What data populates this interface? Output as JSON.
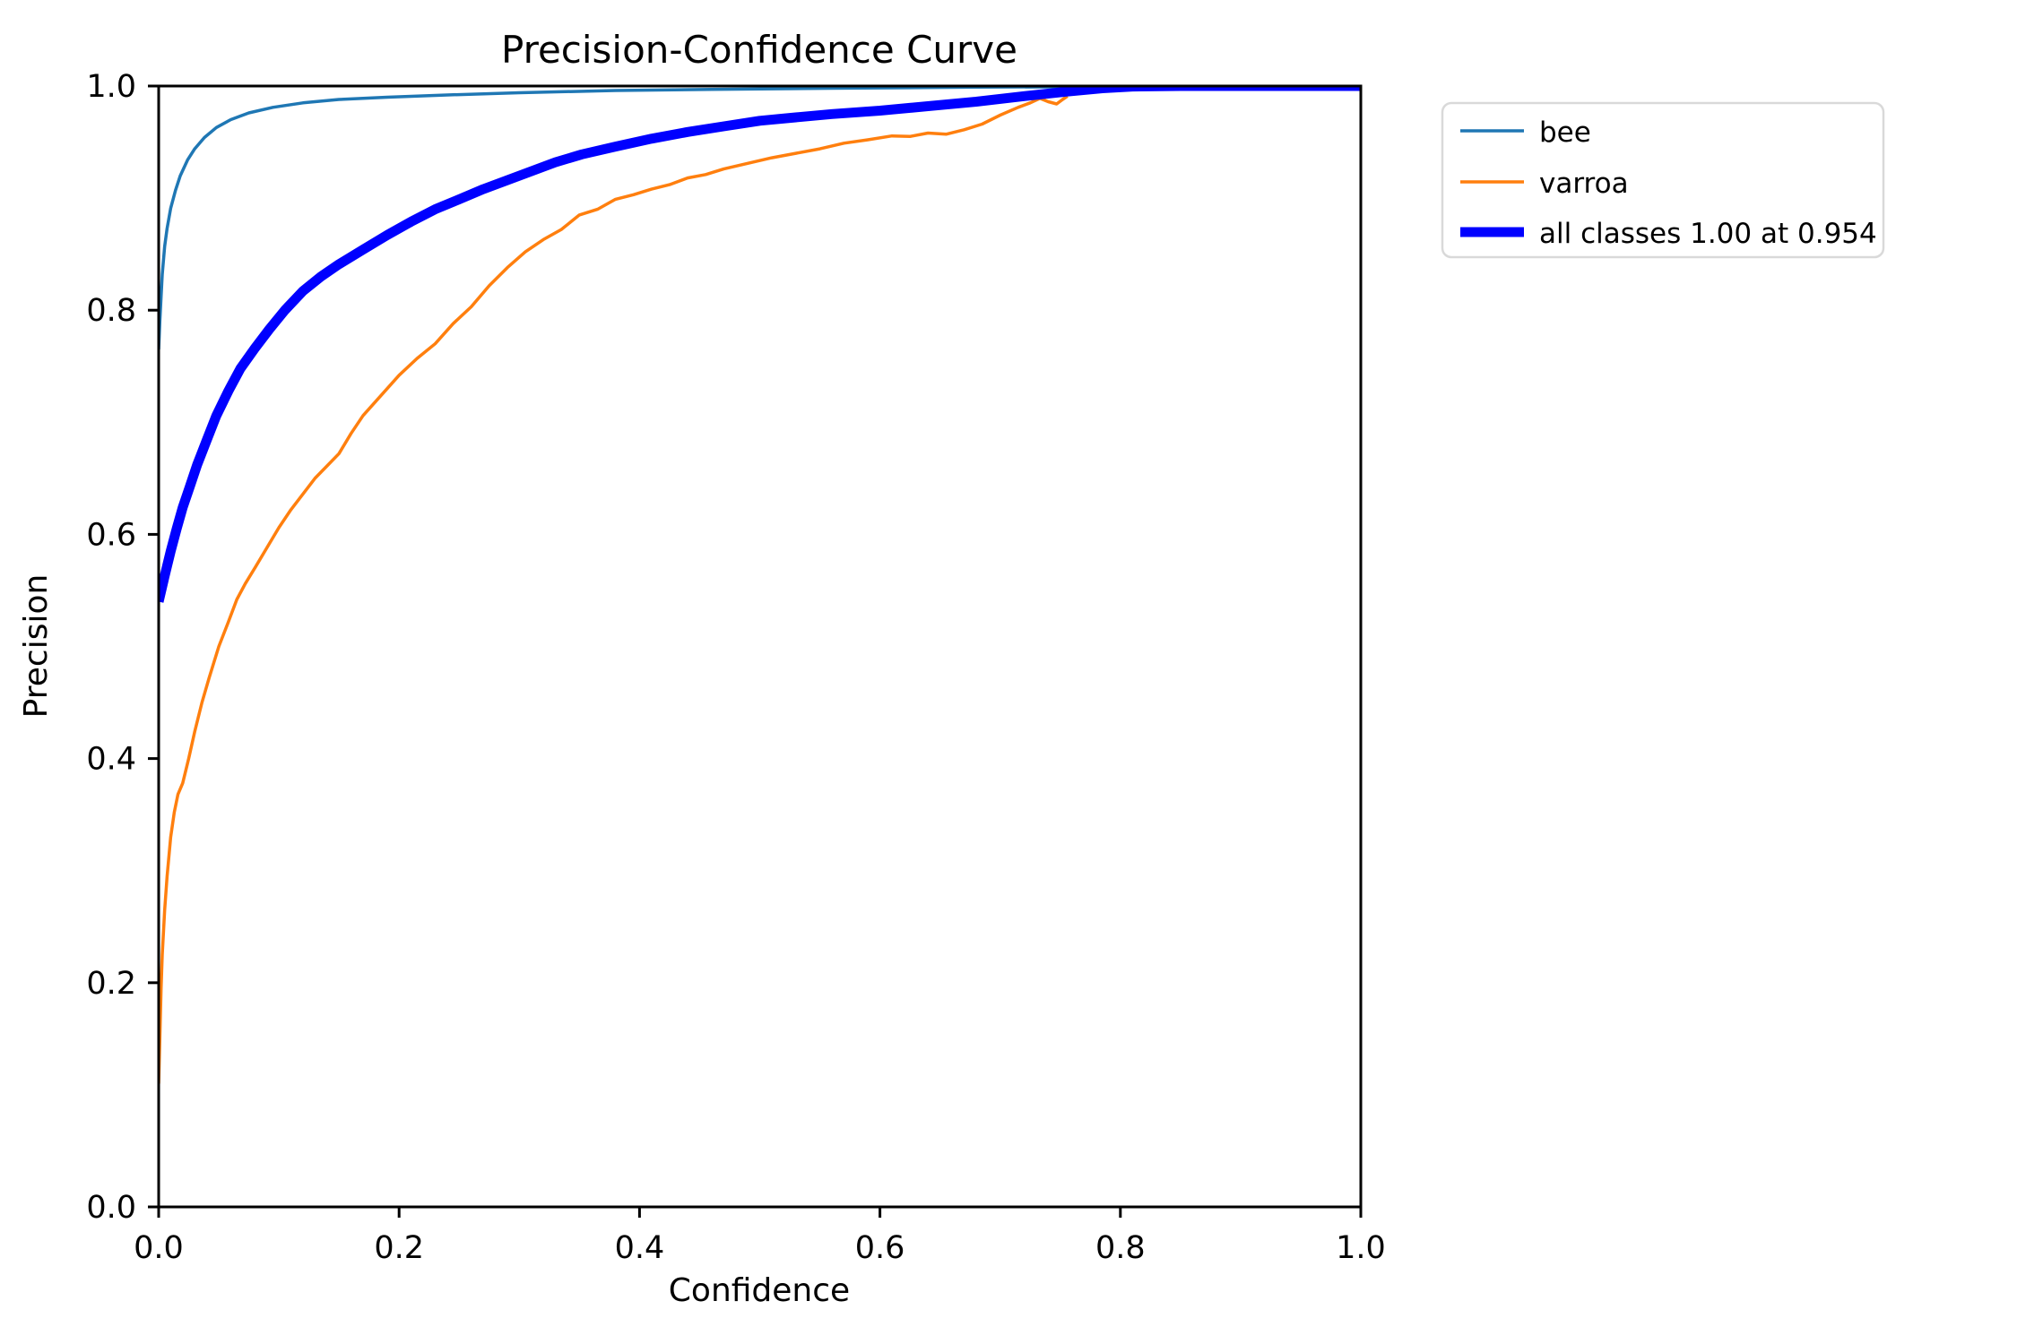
{
  "title": "Precision-Confidence Curve",
  "axes": {
    "xlabel": "Confidence",
    "ylabel": "Precision",
    "x_tick_labels": [
      "0.0",
      "0.2",
      "0.4",
      "0.6",
      "0.8",
      "1.0"
    ],
    "y_tick_labels": [
      "0.0",
      "0.2",
      "0.4",
      "0.6",
      "0.8",
      "1.0"
    ],
    "x_tick_values": [
      0.0,
      0.2,
      0.4,
      0.6,
      0.8,
      1.0
    ],
    "y_tick_values": [
      0.0,
      0.2,
      0.4,
      0.6,
      0.8,
      1.0
    ]
  },
  "legend": {
    "items": [
      {
        "label": "bee",
        "color": "#1f77b4"
      },
      {
        "label": "varroa",
        "color": "#ff7f0e"
      },
      {
        "label": "all classes 1.00 at 0.954",
        "color": "#0000ff"
      }
    ]
  },
  "chart_data": {
    "type": "line",
    "title": "Precision-Confidence Curve",
    "xlabel": "Confidence",
    "ylabel": "Precision",
    "xlim": [
      0,
      1
    ],
    "ylim": [
      0,
      1
    ],
    "grid": false,
    "legend_position": "outside-upper-right",
    "annotation": {
      "all_classes_max_precision": 1.0,
      "at_confidence": 0.954
    },
    "series": [
      {
        "name": "bee",
        "color": "#1f77b4",
        "width": 3.5,
        "points": [
          [
            0.0,
            0.765
          ],
          [
            0.001,
            0.79
          ],
          [
            0.002,
            0.812
          ],
          [
            0.003,
            0.832
          ],
          [
            0.005,
            0.857
          ],
          [
            0.007,
            0.873
          ],
          [
            0.01,
            0.891
          ],
          [
            0.014,
            0.907
          ],
          [
            0.018,
            0.92
          ],
          [
            0.024,
            0.934
          ],
          [
            0.03,
            0.944
          ],
          [
            0.038,
            0.954
          ],
          [
            0.048,
            0.963
          ],
          [
            0.06,
            0.97
          ],
          [
            0.075,
            0.976
          ],
          [
            0.095,
            0.981
          ],
          [
            0.12,
            0.985
          ],
          [
            0.15,
            0.988
          ],
          [
            0.19,
            0.99
          ],
          [
            0.24,
            0.992
          ],
          [
            0.3,
            0.994
          ],
          [
            0.38,
            0.996
          ],
          [
            0.46,
            0.997
          ],
          [
            0.56,
            0.998
          ],
          [
            0.68,
            0.999
          ],
          [
            0.8,
            0.9995
          ],
          [
            0.93,
            1.0
          ]
        ]
      },
      {
        "name": "varroa",
        "color": "#ff7f0e",
        "width": 3.5,
        "points": [
          [
            0.0,
            0.11
          ],
          [
            0.001,
            0.15
          ],
          [
            0.002,
            0.195
          ],
          [
            0.003,
            0.225
          ],
          [
            0.005,
            0.265
          ],
          [
            0.007,
            0.295
          ],
          [
            0.01,
            0.33
          ],
          [
            0.013,
            0.352
          ],
          [
            0.016,
            0.368
          ],
          [
            0.02,
            0.378
          ],
          [
            0.025,
            0.4
          ],
          [
            0.03,
            0.424
          ],
          [
            0.036,
            0.45
          ],
          [
            0.042,
            0.472
          ],
          [
            0.05,
            0.5
          ],
          [
            0.058,
            0.522
          ],
          [
            0.065,
            0.542
          ],
          [
            0.072,
            0.556
          ],
          [
            0.08,
            0.57
          ],
          [
            0.09,
            0.588
          ],
          [
            0.1,
            0.606
          ],
          [
            0.11,
            0.622
          ],
          [
            0.12,
            0.636
          ],
          [
            0.13,
            0.65
          ],
          [
            0.14,
            0.661
          ],
          [
            0.15,
            0.672
          ],
          [
            0.16,
            0.69
          ],
          [
            0.17,
            0.706
          ],
          [
            0.185,
            0.724
          ],
          [
            0.2,
            0.742
          ],
          [
            0.215,
            0.757
          ],
          [
            0.23,
            0.77
          ],
          [
            0.245,
            0.788
          ],
          [
            0.26,
            0.803
          ],
          [
            0.275,
            0.822
          ],
          [
            0.29,
            0.838
          ],
          [
            0.305,
            0.852
          ],
          [
            0.32,
            0.863
          ],
          [
            0.335,
            0.872
          ],
          [
            0.35,
            0.885
          ],
          [
            0.365,
            0.89
          ],
          [
            0.38,
            0.899
          ],
          [
            0.395,
            0.903
          ],
          [
            0.41,
            0.908
          ],
          [
            0.425,
            0.912
          ],
          [
            0.44,
            0.918
          ],
          [
            0.455,
            0.921
          ],
          [
            0.47,
            0.926
          ],
          [
            0.49,
            0.931
          ],
          [
            0.51,
            0.936
          ],
          [
            0.53,
            0.94
          ],
          [
            0.55,
            0.944
          ],
          [
            0.57,
            0.949
          ],
          [
            0.59,
            0.952
          ],
          [
            0.61,
            0.9555
          ],
          [
            0.625,
            0.955
          ],
          [
            0.64,
            0.958
          ],
          [
            0.655,
            0.957
          ],
          [
            0.67,
            0.961
          ],
          [
            0.685,
            0.966
          ],
          [
            0.7,
            0.974
          ],
          [
            0.715,
            0.981
          ],
          [
            0.725,
            0.985
          ],
          [
            0.733,
            0.989
          ],
          [
            0.74,
            0.986
          ],
          [
            0.747,
            0.984
          ],
          [
            0.752,
            0.988
          ],
          [
            0.756,
            0.991
          ]
        ]
      },
      {
        "name": "all classes",
        "color": "#0000ff",
        "width": 11,
        "points": [
          [
            0.0,
            0.54
          ],
          [
            0.005,
            0.563
          ],
          [
            0.01,
            0.585
          ],
          [
            0.015,
            0.605
          ],
          [
            0.02,
            0.624
          ],
          [
            0.026,
            0.643
          ],
          [
            0.032,
            0.662
          ],
          [
            0.04,
            0.684
          ],
          [
            0.048,
            0.706
          ],
          [
            0.058,
            0.728
          ],
          [
            0.068,
            0.748
          ],
          [
            0.08,
            0.766
          ],
          [
            0.092,
            0.783
          ],
          [
            0.105,
            0.8
          ],
          [
            0.12,
            0.817
          ],
          [
            0.135,
            0.83
          ],
          [
            0.15,
            0.841
          ],
          [
            0.17,
            0.854
          ],
          [
            0.19,
            0.867
          ],
          [
            0.21,
            0.879
          ],
          [
            0.23,
            0.89
          ],
          [
            0.25,
            0.899
          ],
          [
            0.27,
            0.908
          ],
          [
            0.29,
            0.916
          ],
          [
            0.31,
            0.924
          ],
          [
            0.33,
            0.932
          ],
          [
            0.352,
            0.939
          ],
          [
            0.38,
            0.946
          ],
          [
            0.41,
            0.953
          ],
          [
            0.44,
            0.959
          ],
          [
            0.47,
            0.964
          ],
          [
            0.5,
            0.969
          ],
          [
            0.53,
            0.972
          ],
          [
            0.56,
            0.975
          ],
          [
            0.6,
            0.978
          ],
          [
            0.64,
            0.982
          ],
          [
            0.68,
            0.986
          ],
          [
            0.72,
            0.991
          ],
          [
            0.755,
            0.995
          ],
          [
            0.785,
            0.998
          ],
          [
            0.81,
            0.9995
          ],
          [
            0.85,
            1.0
          ],
          [
            1.0,
            1.0
          ]
        ]
      }
    ]
  }
}
